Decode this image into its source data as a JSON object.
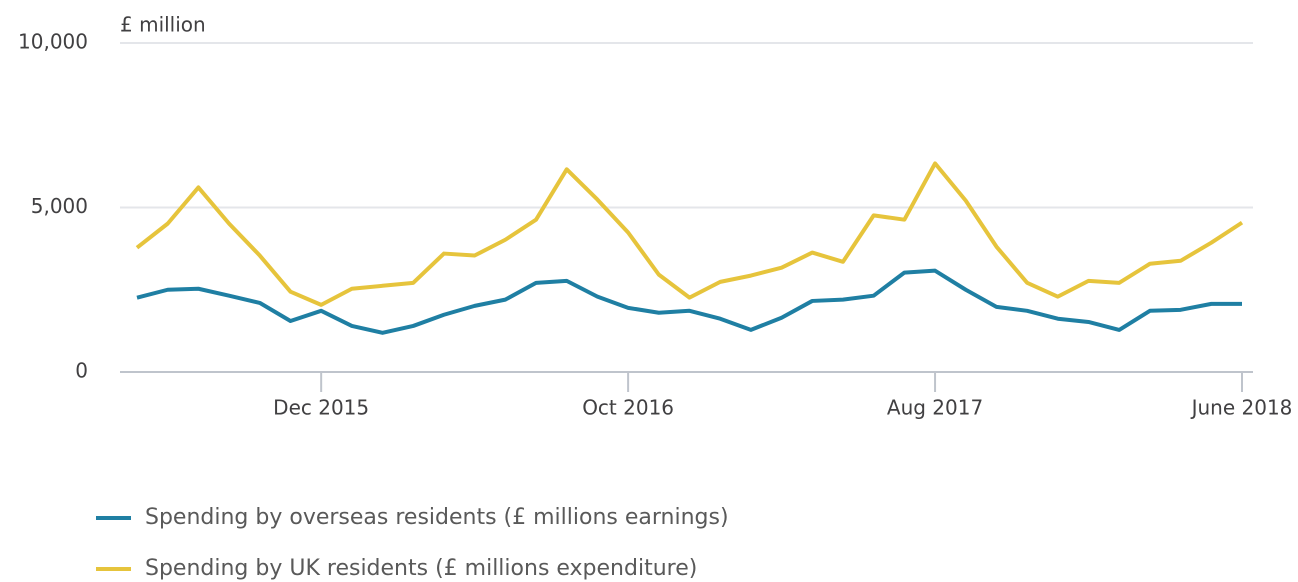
{
  "chart_data": {
    "type": "line",
    "y_axis_label": "£ million",
    "categories": [
      null,
      null,
      null,
      null,
      null,
      null,
      "Dec 2015",
      null,
      null,
      null,
      null,
      null,
      null,
      null,
      null,
      null,
      "Oct 2016",
      null,
      null,
      null,
      null,
      null,
      null,
      null,
      null,
      null,
      "Aug 2017",
      null,
      null,
      null,
      null,
      null,
      null,
      null,
      null,
      null,
      "June 2018"
    ],
    "series": [
      {
        "name": "Spending by overseas residents (£ millions earnings)",
        "color": "#1f7fa3",
        "values": [
          2260,
          2500,
          2530,
          2320,
          2100,
          1550,
          1860,
          1400,
          1190,
          1400,
          1740,
          2010,
          2200,
          2710,
          2770,
          2290,
          1950,
          1800,
          1860,
          1620,
          1280,
          1650,
          2160,
          2200,
          2320,
          3020,
          3080,
          2500,
          1980,
          1860,
          1620,
          1520,
          1280,
          1860,
          1890,
          2070,
          2070
        ]
      },
      {
        "name": "Spending by UK residents (£ millions expenditure)",
        "color": "#e6c43c",
        "values": [
          3780,
          4510,
          5610,
          4510,
          3540,
          2440,
          2040,
          2530,
          2620,
          2710,
          3600,
          3540,
          4020,
          4630,
          6160,
          5240,
          4240,
          2960,
          2260,
          2740,
          2930,
          3170,
          3630,
          3350,
          4760,
          4630,
          6340,
          5210,
          3810,
          2710,
          2290,
          2770,
          2710,
          3290,
          3380,
          3930,
          4540
        ]
      }
    ],
    "ylim": [
      0,
      10000
    ],
    "yticks": [
      0,
      {
        "value": 5000,
        "label": "5,000"
      },
      {
        "value": 10000,
        "label": "10,000"
      }
    ],
    "grid": true,
    "legend": "bottom"
  }
}
